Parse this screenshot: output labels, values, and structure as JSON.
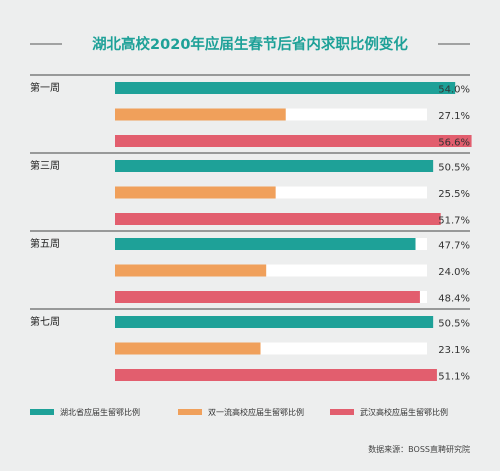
{
  "chart_data": {
    "type": "bar",
    "orientation": "horizontal",
    "title": "湖北高校2020年应届生春节后省内求职比例变化",
    "categories": [
      "第一周",
      "第三周",
      "第五周",
      "第七周"
    ],
    "series": [
      {
        "name": "湖北省应届生留鄂比例",
        "color": "#1ea198",
        "values": [
          54.0,
          50.5,
          47.7,
          50.5
        ],
        "labels": [
          "54.0%",
          "50.5%",
          "47.7%",
          "50.5%"
        ]
      },
      {
        "name": "双一流高校应届生留鄂比例",
        "color": "#f0a05b",
        "values": [
          27.1,
          25.5,
          24.0,
          23.1
        ],
        "labels": [
          "27.1%",
          "25.5%",
          "24.0%",
          "23.1%"
        ]
      },
      {
        "name": "武汉高校应届生留鄂比例",
        "color": "#e25e6e",
        "values": [
          56.6,
          51.7,
          48.4,
          51.1
        ],
        "labels": [
          "56.6%",
          "51.7%",
          "48.4%",
          "51.1%"
        ]
      }
    ],
    "xlim": [
      0,
      60
    ],
    "legend": "bottom",
    "source": "数据来源：BOSS直聘研究院",
    "colors": {
      "title": "#1ea198",
      "track": "#ffffff",
      "divider": "#444444",
      "background": "#edeeee"
    }
  }
}
